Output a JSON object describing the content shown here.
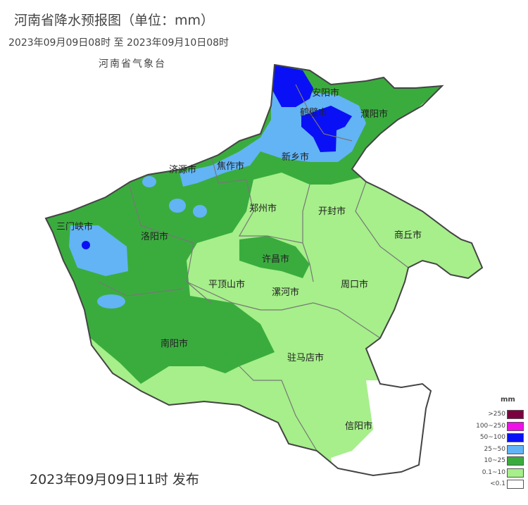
{
  "header": {
    "title": "河南省降水预报图（单位：mm）",
    "period": "2023年09月09日08时  至  2023年09月10日08时",
    "agency": "河南省气象台"
  },
  "footer": {
    "issued": "2023年09月09日11时 发布"
  },
  "map": {
    "cities": [
      "安阳市",
      "鹤壁市",
      "濮阳市",
      "新乡市",
      "济源市",
      "焦作市",
      "郑州市",
      "开封市",
      "三门峡市",
      "洛阳市",
      "商丘市",
      "许昌市",
      "平顶山市",
      "漯河市",
      "周口市",
      "南阳市",
      "驻马店市",
      "信阳市"
    ]
  },
  "legend": {
    "unit": "mm",
    "items": [
      {
        "label": ">250",
        "color": "#7a0040"
      },
      {
        "label": "100~250",
        "color": "#f010e8"
      },
      {
        "label": "50~100",
        "color": "#0a10f5"
      },
      {
        "label": "25~50",
        "color": "#62b4f5"
      },
      {
        "label": "10~25",
        "color": "#3aac3e"
      },
      {
        "label": "0.1~10",
        "color": "#a6ef8a"
      },
      {
        "label": "<0.1",
        "color": "#ffffff"
      }
    ]
  }
}
